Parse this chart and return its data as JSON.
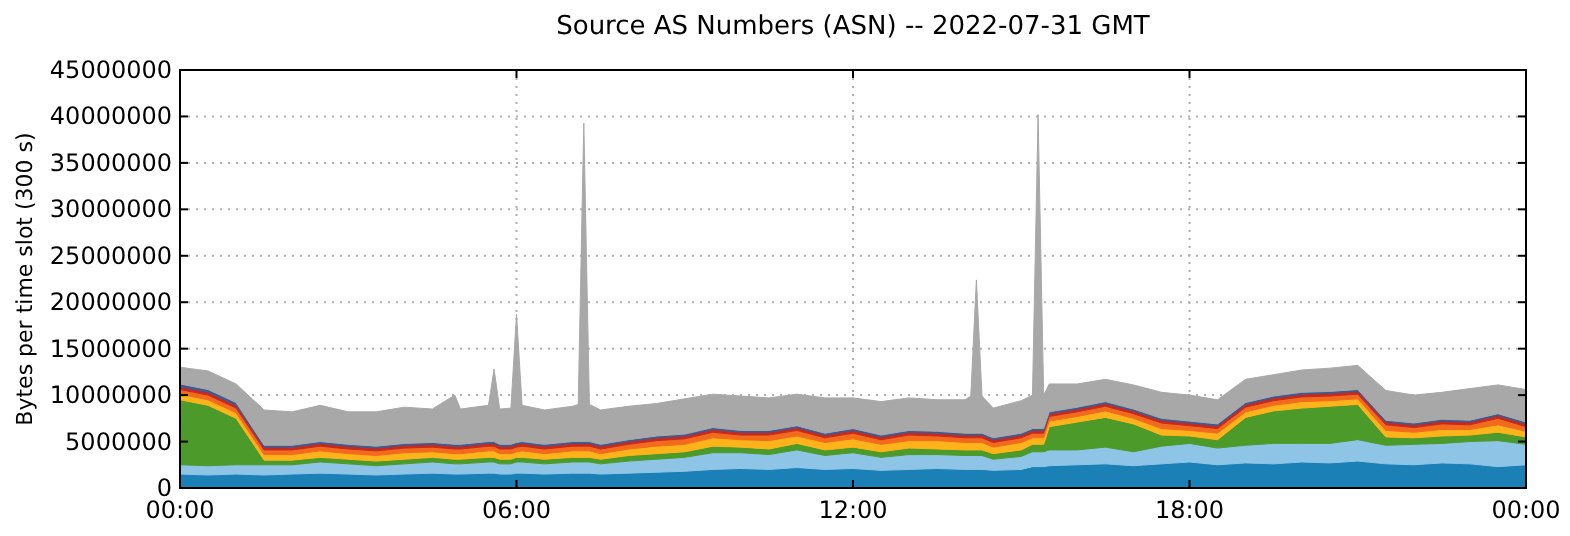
{
  "chart_data": {
    "type": "area",
    "stacked": true,
    "title": "Source AS Numbers (ASN) -- 2022-07-31 GMT",
    "ylabel": "Bytes per time slot (300 s)",
    "grid": true,
    "x": [
      0,
      0.5,
      1,
      1.5,
      2,
      2.5,
      3,
      3.5,
      4,
      4.5,
      4.9,
      5,
      5.5,
      5.6,
      5.7,
      5.9,
      6,
      6.1,
      6.5,
      7,
      7.1,
      7.2,
      7.3,
      7.5,
      8,
      8.5,
      9,
      9.5,
      10,
      10.5,
      11,
      11.5,
      12,
      12.5,
      13,
      13.5,
      14,
      14.1,
      14.2,
      14.3,
      14.5,
      15,
      15.2,
      15.3,
      15.4,
      15.5,
      16,
      16.5,
      17,
      17.5,
      18,
      18.5,
      19,
      19.5,
      20,
      20.5,
      21,
      21.5,
      22,
      22.5,
      23,
      23.5,
      24
    ],
    "xlim": [
      0,
      24
    ],
    "xticks": [
      {
        "value": 0,
        "label": "00:00"
      },
      {
        "value": 6,
        "label": "06:00"
      },
      {
        "value": 12,
        "label": "12:00"
      },
      {
        "value": 18,
        "label": "18:00"
      },
      {
        "value": 24,
        "label": "00:00"
      }
    ],
    "ylim": [
      0,
      45000000
    ],
    "yticks": [
      0,
      5000000,
      10000000,
      15000000,
      20000000,
      25000000,
      30000000,
      35000000,
      40000000,
      45000000
    ],
    "series": [
      {
        "color": "#1a80b6",
        "values": [
          1500000.0,
          1400000.0,
          1500000.0,
          1400000.0,
          1500000.0,
          1600000.0,
          1500000.0,
          1400000.0,
          1500000.0,
          1600000.0,
          1500000.0,
          1500000.0,
          1600000.0,
          1600000.0,
          1500000.0,
          1500000.0,
          1600000.0,
          1600000.0,
          1500000.0,
          1600000.0,
          1600000.0,
          1600000.0,
          1600000.0,
          1500000.0,
          1600000.0,
          1700000.0,
          1800000.0,
          2000000.0,
          2100000.0,
          2000000.0,
          2200000.0,
          2000000.0,
          2100000.0,
          1900000.0,
          2000000.0,
          2100000.0,
          2000000.0,
          2000000.0,
          2000000.0,
          2000000.0,
          1900000.0,
          2000000.0,
          2300000.0,
          2300000.0,
          2300000.0,
          2400000.0,
          2500000.0,
          2600000.0,
          2400000.0,
          2600000.0,
          2800000.0,
          2500000.0,
          2700000.0,
          2600000.0,
          2800000.0,
          2700000.0,
          2900000.0,
          2600000.0,
          2500000.0,
          2700000.0,
          2600000.0,
          2300000.0,
          2500000.0
        ]
      },
      {
        "color": "#8ec4e6",
        "values": [
          1000000.0,
          1000000.0,
          1000000.0,
          1100000.0,
          1000000.0,
          1200000.0,
          1100000.0,
          1000000.0,
          1100000.0,
          1200000.0,
          1100000.0,
          1100000.0,
          1200000.0,
          1200000.0,
          1100000.0,
          1100000.0,
          1200000.0,
          1200000.0,
          1100000.0,
          1200000.0,
          1200000.0,
          1200000.0,
          1200000.0,
          1100000.0,
          1300000.0,
          1400000.0,
          1500000.0,
          1800000.0,
          1700000.0,
          1600000.0,
          1900000.0,
          1500000.0,
          1700000.0,
          1400000.0,
          1600000.0,
          1500000.0,
          1500000.0,
          1500000.0,
          1500000.0,
          1500000.0,
          1200000.0,
          1400000.0,
          1600000.0,
          1600000.0,
          1600000.0,
          1700000.0,
          1600000.0,
          1800000.0,
          1500000.0,
          1900000.0,
          2000000.0,
          1800000.0,
          1900000.0,
          2200000.0,
          2000000.0,
          2100000.0,
          2300000.0,
          2000000.0,
          2200000.0,
          2100000.0,
          2400000.0,
          2800000.0,
          2200000.0
        ]
      },
      {
        "color": "#4c9a2a",
        "values": [
          7000000.0,
          6500000.0,
          5000000.0,
          500000.0,
          500000.0,
          500000.0,
          500000.0,
          500000.0,
          500000.0,
          500000.0,
          500000.0,
          500000.0,
          500000.0,
          500000.0,
          500000.0,
          500000.0,
          500000.0,
          500000.0,
          500000.0,
          500000.0,
          500000.0,
          500000.0,
          500000.0,
          500000.0,
          600000.0,
          600000.0,
          600000.0,
          700000.0,
          600000.0,
          600000.0,
          700000.0,
          600000.0,
          600000.0,
          600000.0,
          700000.0,
          600000.0,
          600000.0,
          600000.0,
          600000.0,
          600000.0,
          600000.0,
          700000.0,
          800000.0,
          800000.0,
          800000.0,
          2500000.0,
          3000000.0,
          3200000.0,
          3000000.0,
          1200000.0,
          800000.0,
          900000.0,
          3000000.0,
          3500000.0,
          3800000.0,
          4000000.0,
          3800000.0,
          900000.0,
          700000.0,
          800000.0,
          700000.0,
          900000.0,
          800000.0
        ]
      },
      {
        "color": "#ffb31a",
        "values": [
          600000.0,
          600000.0,
          600000.0,
          600000.0,
          600000.0,
          700000.0,
          600000.0,
          600000.0,
          700000.0,
          600000.0,
          600000.0,
          600000.0,
          700000.0,
          700000.0,
          600000.0,
          600000.0,
          600000.0,
          700000.0,
          600000.0,
          700000.0,
          700000.0,
          700000.0,
          700000.0,
          600000.0,
          700000.0,
          800000.0,
          800000.0,
          900000.0,
          800000.0,
          900000.0,
          800000.0,
          800000.0,
          900000.0,
          800000.0,
          800000.0,
          900000.0,
          800000.0,
          800000.0,
          800000.0,
          800000.0,
          700000.0,
          800000.0,
          700000.0,
          700000.0,
          700000.0,
          600000.0,
          600000.0,
          700000.0,
          600000.0,
          700000.0,
          600000.0,
          700000.0,
          600000.0,
          600000.0,
          700000.0,
          600000.0,
          600000.0,
          700000.0,
          600000.0,
          700000.0,
          600000.0,
          800000.0,
          600000.0
        ]
      },
      {
        "color": "#f26b1d",
        "values": [
          500000.0,
          500000.0,
          500000.0,
          500000.0,
          500000.0,
          500000.0,
          500000.0,
          500000.0,
          500000.0,
          500000.0,
          500000.0,
          500000.0,
          500000.0,
          500000.0,
          500000.0,
          500000.0,
          500000.0,
          500000.0,
          500000.0,
          500000.0,
          500000.0,
          500000.0,
          500000.0,
          500000.0,
          500000.0,
          600000.0,
          600000.0,
          600000.0,
          500000.0,
          600000.0,
          600000.0,
          500000.0,
          600000.0,
          500000.0,
          600000.0,
          500000.0,
          500000.0,
          500000.0,
          500000.0,
          500000.0,
          500000.0,
          500000.0,
          500000.0,
          500000.0,
          500000.0,
          500000.0,
          500000.0,
          500000.0,
          500000.0,
          600000.0,
          500000.0,
          500000.0,
          500000.0,
          500000.0,
          500000.0,
          500000.0,
          500000.0,
          600000.0,
          500000.0,
          600000.0,
          500000.0,
          700000.0,
          500000.0
        ]
      },
      {
        "color": "#c8281e",
        "values": [
          300000.0,
          300000.0,
          300000.0,
          300000.0,
          300000.0,
          300000.0,
          300000.0,
          300000.0,
          300000.0,
          300000.0,
          300000.0,
          300000.0,
          300000.0,
          300000.0,
          300000.0,
          300000.0,
          300000.0,
          300000.0,
          300000.0,
          300000.0,
          300000.0,
          300000.0,
          300000.0,
          300000.0,
          300000.0,
          300000.0,
          300000.0,
          300000.0,
          300000.0,
          300000.0,
          300000.0,
          300000.0,
          300000.0,
          300000.0,
          300000.0,
          300000.0,
          300000.0,
          300000.0,
          300000.0,
          300000.0,
          300000.0,
          300000.0,
          300000.0,
          300000.0,
          300000.0,
          300000.0,
          300000.0,
          300000.0,
          300000.0,
          300000.0,
          300000.0,
          300000.0,
          300000.0,
          300000.0,
          300000.0,
          300000.0,
          300000.0,
          300000.0,
          300000.0,
          300000.0,
          300000.0,
          300000.0,
          300000.0
        ]
      },
      {
        "color": "#3e5a8e",
        "values": [
          300000.0,
          300000.0,
          300000.0,
          200000.0,
          200000.0,
          200000.0,
          200000.0,
          200000.0,
          200000.0,
          200000.0,
          200000.0,
          200000.0,
          200000.0,
          200000.0,
          200000.0,
          200000.0,
          200000.0,
          200000.0,
          200000.0,
          200000.0,
          200000.0,
          200000.0,
          200000.0,
          200000.0,
          200000.0,
          200000.0,
          200000.0,
          200000.0,
          200000.0,
          200000.0,
          200000.0,
          200000.0,
          200000.0,
          200000.0,
          200000.0,
          200000.0,
          200000.0,
          200000.0,
          200000.0,
          200000.0,
          200000.0,
          200000.0,
          200000.0,
          200000.0,
          200000.0,
          200000.0,
          200000.0,
          200000.0,
          200000.0,
          200000.0,
          200000.0,
          200000.0,
          200000.0,
          200000.0,
          200000.0,
          200000.0,
          200000.0,
          200000.0,
          200000.0,
          200000.0,
          200000.0,
          200000.0,
          200000.0
        ]
      },
      {
        "color": "#a8a8a8",
        "values": [
          1800000.0,
          2000000.0,
          2000000.0,
          3800000.0,
          3600000.0,
          3900000.0,
          3500000.0,
          3700000.0,
          3900000.0,
          3600000.0,
          5300000.0,
          3800000.0,
          3900000.0,
          7800000.0,
          3800000.0,
          3900000.0,
          13800000.0,
          3900000.0,
          3700000.0,
          3800000.0,
          4000000.0,
          34300000.0,
          4000000.0,
          3700000.0,
          3600000.0,
          3500000.0,
          3800000.0,
          3600000.0,
          3700000.0,
          3500000.0,
          3400000.0,
          3800000.0,
          3300000.0,
          3600000.0,
          3500000.0,
          3400000.0,
          3600000.0,
          4000000.0,
          16500000.0,
          4000000.0,
          3200000.0,
          3500000.0,
          3600000.0,
          33800000.0,
          3600000.0,
          3000000.0,
          2500000.0,
          2400000.0,
          2600000.0,
          2800000.0,
          2800000.0,
          2600000.0,
          2500000.0,
          2300000.0,
          2400000.0,
          2500000.0,
          2600000.0,
          3200000.0,
          3000000.0,
          2900000.0,
          3400000.0,
          3100000.0,
          3500000.0
        ]
      }
    ]
  }
}
